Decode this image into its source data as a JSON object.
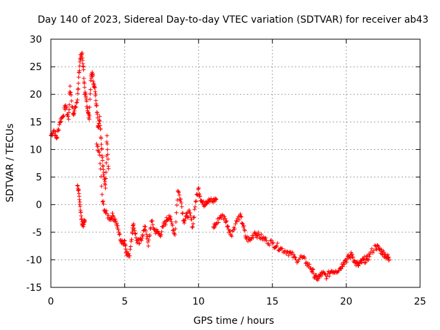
{
  "chart_data": {
    "type": "scatter",
    "title": "Day 140 of 2023, Sidereal Day-to-day VTEC variation (SDTVAR) for receiver ab43",
    "xlabel": "GPS time / hours",
    "ylabel": "SDTVAR / TECUs",
    "xlim": [
      0,
      25
    ],
    "ylim": [
      -15,
      30
    ],
    "xticks": [
      0,
      5,
      10,
      15,
      20,
      25
    ],
    "yticks": [
      -15,
      -10,
      -5,
      0,
      5,
      10,
      15,
      20,
      25,
      30
    ],
    "grid": true,
    "marker": "plus",
    "color": "#ff0000",
    "series": [
      {
        "name": "SDTVAR",
        "x": [
          0.0,
          0.2,
          0.4,
          0.6,
          0.8,
          1.0,
          1.2,
          1.3,
          1.5,
          1.6,
          1.8,
          1.9,
          2.0,
          2.1,
          2.2,
          2.3,
          2.4,
          2.5,
          2.6,
          2.7,
          2.8,
          2.9,
          3.0,
          3.1,
          3.2,
          3.3,
          3.4,
          3.5,
          3.6,
          3.7,
          3.8,
          3.9,
          1.8,
          1.9,
          2.0,
          2.1,
          2.2,
          2.3,
          3.1,
          3.3,
          3.5,
          3.7,
          4.0,
          4.2,
          4.4,
          4.6,
          4.8,
          5.0,
          5.1,
          5.3,
          5.5,
          5.6,
          5.8,
          6.0,
          6.2,
          6.4,
          6.6,
          6.8,
          7.0,
          7.2,
          7.4,
          7.6,
          7.8,
          8.0,
          8.2,
          8.4,
          8.6,
          8.8,
          9.0,
          9.2,
          9.4,
          9.6,
          9.8,
          10.0,
          10.1,
          10.3,
          10.5,
          10.7,
          11.0,
          11.2,
          11.0,
          11.2,
          11.5,
          11.8,
          12.0,
          12.2,
          12.5,
          12.8,
          13.0,
          13.2,
          13.5,
          13.8,
          14.0,
          14.3,
          14.6,
          15.0,
          15.3,
          15.6,
          16.0,
          16.3,
          16.6,
          17.0,
          17.3,
          17.6,
          17.8,
          18.0,
          18.2,
          18.4,
          18.7,
          19.0,
          19.3,
          19.6,
          19.8,
          20.0,
          20.2,
          20.4,
          20.6,
          20.8,
          21.0,
          21.2,
          21.4,
          21.6,
          22.0,
          22.2,
          22.4,
          22.6,
          22.8,
          22.9
        ],
        "y": [
          12.5,
          13.5,
          12.0,
          15.0,
          16.0,
          18.0,
          15.5,
          21.5,
          16.5,
          17.0,
          19.0,
          24.0,
          26.5,
          27.5,
          25.0,
          20.0,
          19.0,
          17.0,
          15.5,
          22.5,
          24.0,
          22.0,
          20.5,
          18.0,
          14.0,
          16.0,
          12.0,
          8.0,
          5.0,
          3.0,
          12.5,
          6.5,
          3.5,
          2.0,
          -1.0,
          -3.5,
          -4.0,
          -3.0,
          11.0,
          9.0,
          0.5,
          -1.5,
          -2.5,
          -2.0,
          -3.0,
          -5.0,
          -7.0,
          -6.5,
          -8.5,
          -9.5,
          -5.0,
          -3.5,
          -6.5,
          -7.0,
          -5.5,
          -4.0,
          -7.5,
          -3.0,
          -4.5,
          -5.0,
          -5.5,
          -4.0,
          -3.0,
          -2.0,
          -3.5,
          -5.5,
          2.5,
          1.0,
          -3.0,
          -2.0,
          -1.5,
          -4.0,
          0.5,
          3.0,
          1.5,
          0.0,
          0.5,
          1.0,
          0.5,
          1.0,
          -4.0,
          -3.5,
          -2.0,
          -2.5,
          -4.0,
          -5.5,
          -3.5,
          -2.0,
          -3.5,
          -6.0,
          -6.5,
          -5.0,
          -5.5,
          -6.0,
          -6.5,
          -7.0,
          -7.5,
          -8.0,
          -8.5,
          -9.0,
          -10.0,
          -9.5,
          -10.5,
          -11.5,
          -12.5,
          -13.5,
          -13.0,
          -12.5,
          -13.0,
          -12.0,
          -12.0,
          -11.5,
          -10.5,
          -10.0,
          -9.5,
          -9.0,
          -10.5,
          -11.0,
          -10.5,
          -10.0,
          -10.0,
          -9.0,
          -7.5,
          -8.0,
          -8.5,
          -9.0,
          -9.5,
          -10.0
        ]
      }
    ]
  }
}
